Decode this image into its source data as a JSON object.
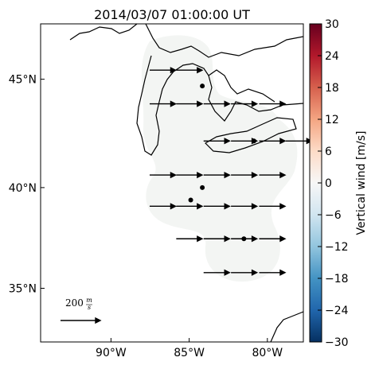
{
  "chart_data": {
    "type": "map",
    "title": "2014/03/07 01:00:00 UT",
    "xlim": [
      -94.5,
      -77.7
    ],
    "ylim": [
      32.2,
      47.4
    ],
    "projection": "mercator",
    "xticks": [
      {
        "value": -90,
        "label": "90°W"
      },
      {
        "value": -85,
        "label": "85°W"
      },
      {
        "value": -80,
        "label": "80°W"
      }
    ],
    "yticks": [
      {
        "value": 35,
        "label": "35°N"
      },
      {
        "value": 40,
        "label": "40°N"
      },
      {
        "value": 45,
        "label": "45°N"
      }
    ],
    "vectors": {
      "lon": [
        -86.7,
        -85.0,
        -86.7,
        -85.0,
        -83.25,
        -81.5,
        -79.7,
        -83.25,
        -81.5,
        -79.7,
        -78.0,
        -86.7,
        -85.0,
        -83.25,
        -81.5,
        -79.7,
        -86.7,
        -85.0,
        -83.25,
        -81.5,
        -79.7,
        -85.0,
        -83.25,
        -81.5,
        -79.7,
        -83.25,
        -81.5,
        -79.7
      ],
      "lat": [
        45.4,
        45.4,
        43.9,
        43.9,
        43.9,
        43.9,
        43.9,
        42.2,
        42.2,
        42.2,
        42.2,
        40.6,
        40.6,
        40.6,
        40.6,
        40.6,
        39.1,
        39.1,
        39.1,
        39.1,
        39.1,
        37.5,
        37.5,
        37.5,
        37.5,
        35.8,
        35.8,
        35.8
      ],
      "u": [
        130,
        130,
        130,
        130,
        130,
        130,
        130,
        130,
        130,
        130,
        130,
        130,
        130,
        130,
        130,
        130,
        130,
        130,
        130,
        130,
        130,
        130,
        130,
        130,
        130,
        130,
        130,
        130
      ],
      "color": "#000000"
    },
    "stations": {
      "lon": [
        -84.16,
        -84.16,
        -84.9,
        -80.86,
        -81.5
      ],
      "lat": [
        44.7,
        40.0,
        39.4,
        42.2,
        37.5
      ],
      "color": "#000000"
    },
    "reference": {
      "value": 200,
      "unit_numerator": "m",
      "unit_denominator": "s"
    },
    "colorbar": {
      "label": "Vertical wind [m/s]",
      "clim": [
        -30,
        30
      ],
      "colormap": [
        "#053061",
        "#2166ac",
        "#4393c3",
        "#92c5de",
        "#d1e5f0",
        "#f7f7f7",
        "#fddbc7",
        "#f4a582",
        "#d6604d",
        "#b2182b",
        "#67001f"
      ],
      "ticks": [
        {
          "value": -30,
          "label": "−30"
        },
        {
          "value": -24,
          "label": "−24"
        },
        {
          "value": -18,
          "label": "−18"
        },
        {
          "value": -12,
          "label": "−12"
        },
        {
          "value": -6,
          "label": "−6"
        },
        0,
        6,
        12,
        18,
        24,
        30
      ]
    }
  }
}
